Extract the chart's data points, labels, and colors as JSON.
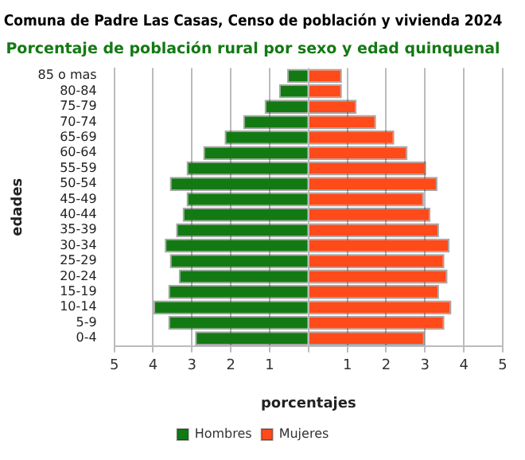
{
  "chart_data": {
    "type": "bar",
    "orientation": "horizontal",
    "stacked": true,
    "title": "Comuna de Padre Las Casas, Censo de población y vivienda 2024",
    "subtitle": "Porcentaje de población rural por sexo y edad quinquenal",
    "xlabel": "porcentajes",
    "ylabel": "edades",
    "categories": [
      "85 o mas",
      "80-84",
      "75-79",
      "70-74",
      "65-69",
      "60-64",
      "55-59",
      "50-54",
      "45-49",
      "40-44",
      "35-39",
      "30-34",
      "25-29",
      "20-24",
      "15-19",
      "10-14",
      "5-9",
      "0-4"
    ],
    "series": [
      {
        "name": "Hombres",
        "color": "#137a13",
        "values": [
          -0.55,
          -0.76,
          -1.13,
          -1.68,
          -2.16,
          -2.71,
          -3.14,
          -3.57,
          -3.14,
          -3.24,
          -3.41,
          -3.7,
          -3.57,
          -3.34,
          -3.61,
          -3.99,
          -3.61,
          -2.92
        ]
      },
      {
        "name": "Mujeres",
        "color": "#ff4a1a",
        "values": [
          0.86,
          0.86,
          1.24,
          1.74,
          2.21,
          2.55,
          3.03,
          3.32,
          2.97,
          3.14,
          3.36,
          3.63,
          3.5,
          3.58,
          3.36,
          3.68,
          3.5,
          2.99
        ]
      }
    ],
    "xlim": [
      -5,
      5
    ],
    "xticks": [
      {
        "value": -5,
        "label": "5"
      },
      {
        "value": -4,
        "label": "4"
      },
      {
        "value": -3,
        "label": "3"
      },
      {
        "value": -2,
        "label": "2"
      },
      {
        "value": -1,
        "label": "1"
      },
      {
        "value": 0,
        "label": null
      },
      1,
      2,
      3,
      4,
      5
    ],
    "grid": "x",
    "legend": "bottom"
  }
}
